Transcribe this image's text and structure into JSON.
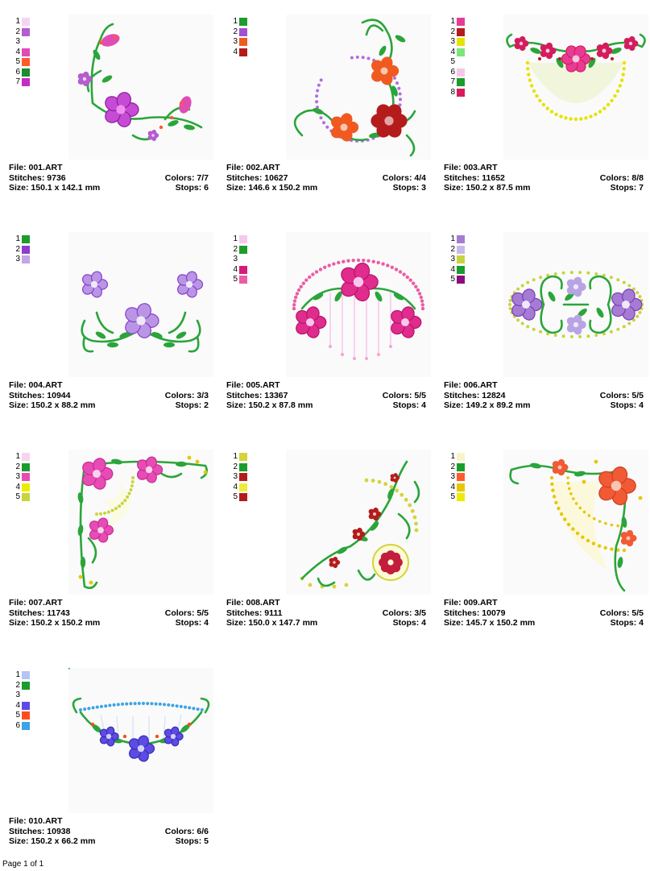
{
  "designs": [
    {
      "file": "File: 001.ART",
      "stitches": "Stitches: 9736",
      "colors": "Colors: 7/7",
      "size": "Size: 150.1 x 142.1 mm",
      "stops": "Stops: 6",
      "swatches": [
        {
          "n": "1",
          "color": "#f4d4f4"
        },
        {
          "n": "2",
          "color": "#b45cd0"
        },
        {
          "n": "3",
          "color": ""
        },
        {
          "n": "4",
          "color": "#e04cb4"
        },
        {
          "n": "5",
          "color": "#ff5a2c"
        },
        {
          "n": "6",
          "color": "#1c8c2c"
        },
        {
          "n": "7",
          "color": "#c42cc4"
        }
      ],
      "motif": "corner-pink"
    },
    {
      "file": "File: 002.ART",
      "stitches": "Stitches: 10627",
      "colors": "Colors: 4/4",
      "size": "Size: 146.6 x 150.2 mm",
      "stops": "Stops: 3",
      "swatches": [
        {
          "n": "1",
          "color": "#1c9c2c"
        },
        {
          "n": "2",
          "color": "#a050d0"
        },
        {
          "n": "3",
          "color": "#f05a20"
        },
        {
          "n": "4",
          "color": "#b41c1c"
        }
      ],
      "motif": "circle-red"
    },
    {
      "file": "File: 003.ART",
      "stitches": "Stitches: 11652",
      "colors": "Colors: 8/8",
      "size": "Size: 150.2 x 87.5 mm",
      "stops": "Stops: 7",
      "swatches": [
        {
          "n": "1",
          "color": "#e83c94"
        },
        {
          "n": "2",
          "color": "#b41c1c"
        },
        {
          "n": "3",
          "color": "#e4e400"
        },
        {
          "n": "4",
          "color": "#7ce47c"
        },
        {
          "n": "5",
          "color": ""
        },
        {
          "n": "6",
          "color": "#f4c8e4"
        },
        {
          "n": "7",
          "color": "#1c9c2c"
        },
        {
          "n": "8",
          "color": "#d41c5c"
        }
      ],
      "motif": "arc-yellow"
    },
    {
      "file": "File: 004.ART",
      "stitches": "Stitches: 10944",
      "colors": "Colors: 3/3",
      "size": "Size: 150.2 x 88.2 mm",
      "stops": "Stops: 2",
      "swatches": [
        {
          "n": "1",
          "color": "#1c9c2c"
        },
        {
          "n": "2",
          "color": "#8c3cd0"
        },
        {
          "n": "3",
          "color": "#c4a4e4"
        }
      ],
      "motif": "swag-lilac"
    },
    {
      "file": "File: 005.ART",
      "stitches": "Stitches: 13367",
      "colors": "Colors: 5/5",
      "size": "Size: 150.2 x 87.8 mm",
      "stops": "Stops: 4",
      "swatches": [
        {
          "n": "1",
          "color": "#f8c8ec"
        },
        {
          "n": "2",
          "color": "#1c9c2c"
        },
        {
          "n": "3",
          "color": ""
        },
        {
          "n": "4",
          "color": "#d41c7c"
        },
        {
          "n": "5",
          "color": "#ec5ca4"
        }
      ],
      "motif": "dome-pink"
    },
    {
      "file": "File: 006.ART",
      "stitches": "Stitches: 12824",
      "colors": "Colors: 5/5",
      "size": "Size: 149.2 x 89.2 mm",
      "stops": "Stops: 4",
      "swatches": [
        {
          "n": "1",
          "color": "#a47cd4"
        },
        {
          "n": "2",
          "color": "#c8b8ec"
        },
        {
          "n": "3",
          "color": "#c8d43c"
        },
        {
          "n": "4",
          "color": "#1c9c2c"
        },
        {
          "n": "5",
          "color": "#8c0c7c"
        }
      ],
      "motif": "oval-violet"
    },
    {
      "file": "File: 007.ART",
      "stitches": "Stitches: 11743",
      "colors": "Colors: 5/5",
      "size": "Size: 150.2 x 150.2 mm",
      "stops": "Stops: 4",
      "swatches": [
        {
          "n": "1",
          "color": "#f8d4ec"
        },
        {
          "n": "2",
          "color": "#1c9c2c"
        },
        {
          "n": "3",
          "color": "#e84cb4"
        },
        {
          "n": "4",
          "color": "#ecec00"
        },
        {
          "n": "5",
          "color": "#c8d43c"
        }
      ],
      "motif": "corner-magenta"
    },
    {
      "file": "File: 008.ART",
      "stitches": "Stitches: 9111",
      "colors": "Colors: 3/5",
      "size": "Size: 150.0 x 147.7 mm",
      "stops": "Stops: 4",
      "swatches": [
        {
          "n": "1",
          "color": "#d4d43c"
        },
        {
          "n": "2",
          "color": "#1c9c2c"
        },
        {
          "n": "3",
          "color": "#b41c1c"
        },
        {
          "n": "4",
          "color": "#ecec3c"
        },
        {
          "n": "5",
          "color": "#b41c1c"
        }
      ],
      "motif": "triangle-red"
    },
    {
      "file": "File: 009.ART",
      "stitches": "Stitches: 10079",
      "colors": "Colors: 5/5",
      "size": "Size: 145.7 x 150.2 mm",
      "stops": "Stops: 4",
      "swatches": [
        {
          "n": "1",
          "color": "#f8f4c8"
        },
        {
          "n": "2",
          "color": "#1c9c2c"
        },
        {
          "n": "3",
          "color": "#ff5a2c"
        },
        {
          "n": "4",
          "color": "#e4c800"
        },
        {
          "n": "5",
          "color": "#ecec00"
        }
      ],
      "motif": "corner-orange"
    },
    {
      "file": "File: 010.ART",
      "stitches": "Stitches: 10938",
      "colors": "Colors: 6/6",
      "size": "Size: 150.2 x 66.2 mm",
      "stops": "Stops: 5",
      "swatches": [
        {
          "n": "1",
          "color": "#b4c4f4"
        },
        {
          "n": "2",
          "color": "#1c9c2c"
        },
        {
          "n": "3",
          "color": ""
        },
        {
          "n": "4",
          "color": "#5c4ce4"
        },
        {
          "n": "5",
          "color": "#ff4c1c"
        },
        {
          "n": "6",
          "color": "#3ca4e4"
        }
      ],
      "motif": "swag-blue"
    }
  ],
  "footer": {
    "page_label": "Page 1 of 1"
  }
}
